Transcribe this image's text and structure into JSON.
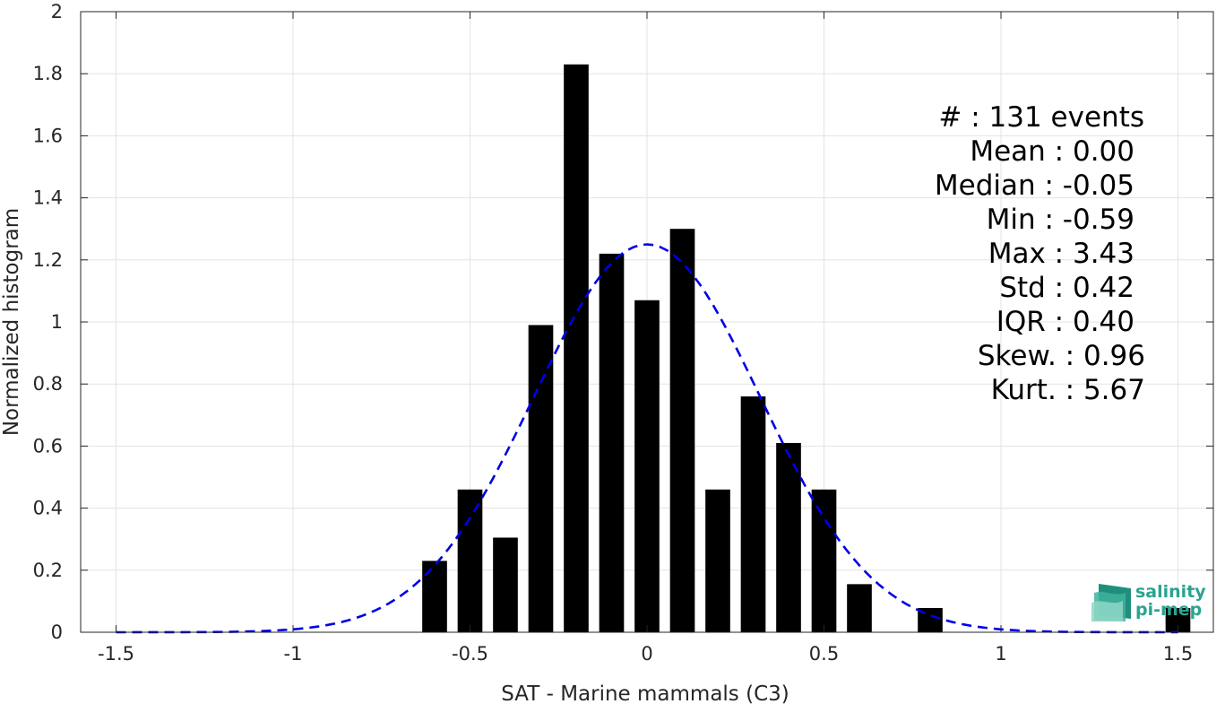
{
  "chart_data": {
    "type": "bar",
    "xlabel": "SAT - Marine mammals (C3)",
    "ylabel": "Normalized histogram",
    "xlim": [
      -1.6,
      1.6
    ],
    "ylim": [
      0,
      2
    ],
    "xticks": [
      "-1.5",
      "-1",
      "-0.5",
      "0",
      "0.5",
      "1",
      "1.5"
    ],
    "xtick_values": [
      -1.5,
      -1,
      -0.5,
      0,
      0.5,
      1,
      1.5
    ],
    "yticks": [
      "0",
      "0.2",
      "0.4",
      "0.6",
      "0.8",
      "1",
      "1.2",
      "1.4",
      "1.6",
      "1.8",
      "2"
    ],
    "ytick_values": [
      0,
      0.2,
      0.4,
      0.6,
      0.8,
      1,
      1.2,
      1.4,
      1.6,
      1.8,
      2
    ],
    "grid": true,
    "bar_color": "#000000",
    "bar_width": 0.07,
    "bars": [
      {
        "x": -0.6,
        "y": 0.23
      },
      {
        "x": -0.5,
        "y": 0.46
      },
      {
        "x": -0.4,
        "y": 0.305
      },
      {
        "x": -0.3,
        "y": 0.99
      },
      {
        "x": -0.2,
        "y": 1.83
      },
      {
        "x": -0.1,
        "y": 1.22
      },
      {
        "x": 0.0,
        "y": 1.07
      },
      {
        "x": 0.1,
        "y": 1.3
      },
      {
        "x": 0.2,
        "y": 0.46
      },
      {
        "x": 0.3,
        "y": 0.76
      },
      {
        "x": 0.4,
        "y": 0.61
      },
      {
        "x": 0.5,
        "y": 0.46
      },
      {
        "x": 0.6,
        "y": 0.155
      },
      {
        "x": 0.8,
        "y": 0.078
      },
      {
        "x": 1.5,
        "y": 0.078
      }
    ],
    "fit_curve": {
      "type": "gaussian",
      "mean": 0.0,
      "std": 0.32,
      "peak": 1.25,
      "x_range": [
        -1.5,
        1.5
      ],
      "color": "#0000e6",
      "style": "dashed"
    },
    "annotations": [
      "#  : 131 events",
      "Mean : 0.00",
      "Median : -0.05",
      "Min : -0.59",
      "Max : 3.43",
      "Std : 0.42",
      "IQR : 0.40",
      "Skew. : 0.96",
      "Kurt. : 5.67"
    ]
  },
  "logo": {
    "line1": "salinity",
    "line2": "pi-mep",
    "color": "#2aa391"
  }
}
